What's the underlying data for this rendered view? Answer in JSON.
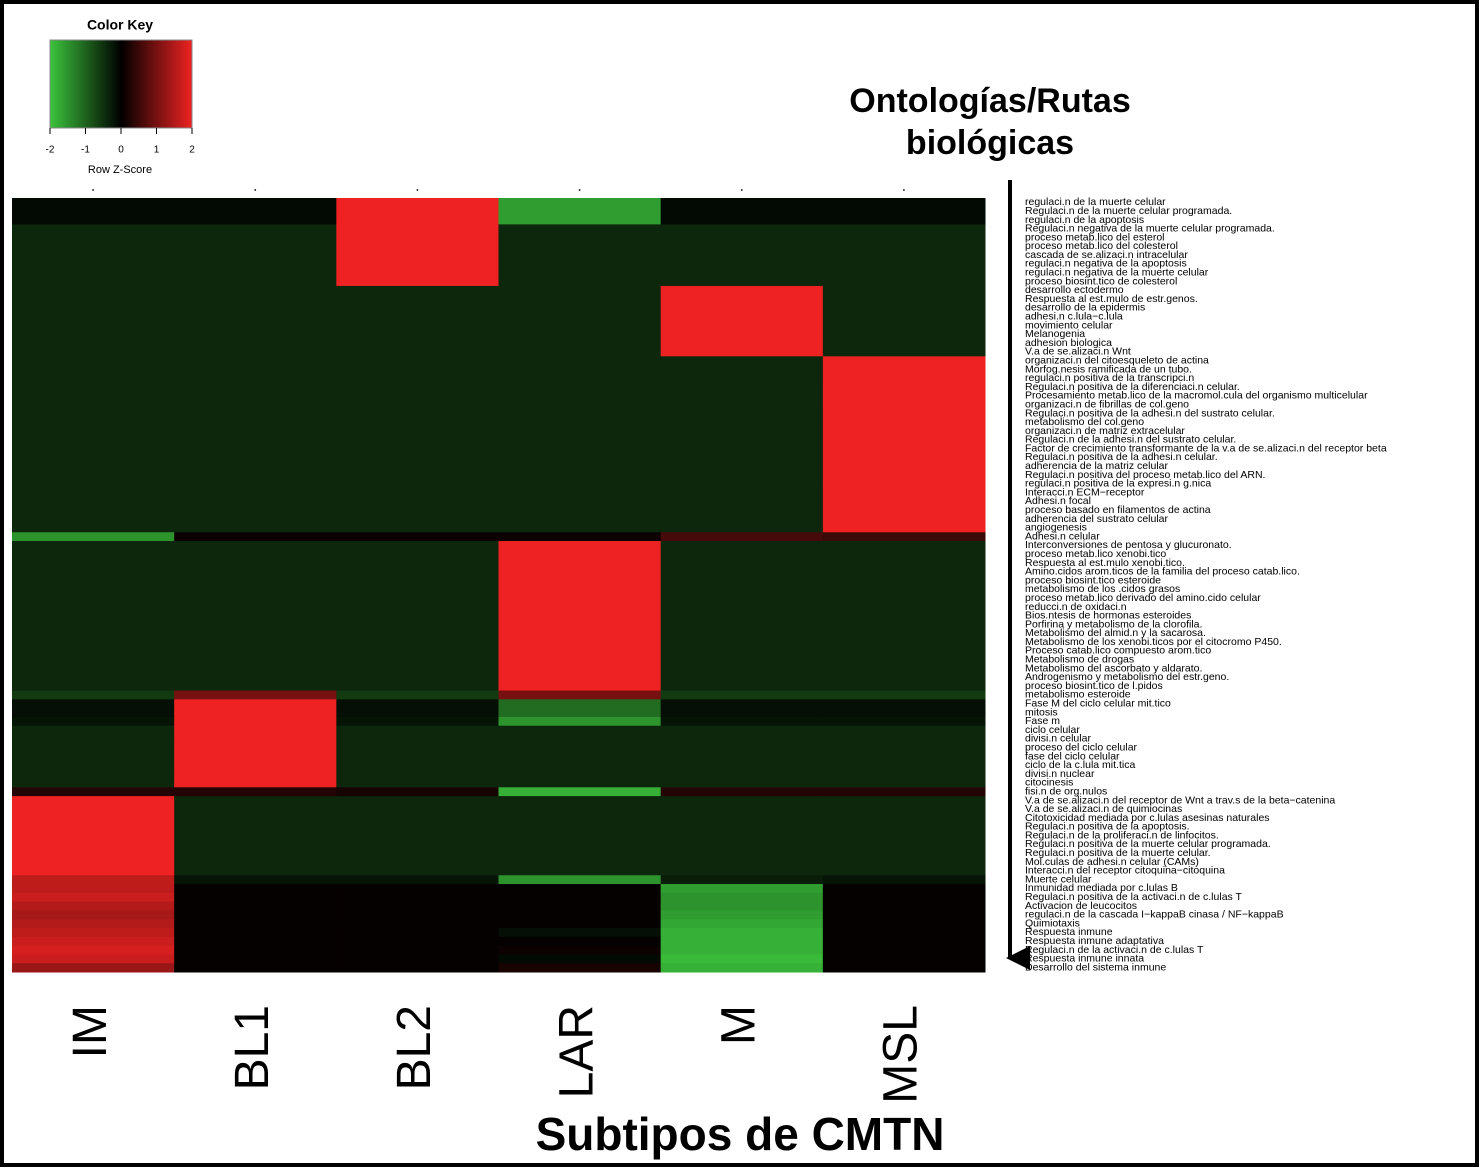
{
  "chart_data": {
    "type": "heatmap",
    "title": "Subtipos de CMTN",
    "row_title": [
      "Ontologías/Rutas",
      "biológicas"
    ],
    "legend": {
      "title": "Color Key",
      "label": "Row Z-Score",
      "zlim": [
        -2,
        2
      ],
      "zticks": [
        -2,
        -1,
        0,
        1,
        2
      ]
    },
    "colors": {
      "low": "#3cc43c",
      "mid": "#000000",
      "high": "#ee2222"
    },
    "columns": [
      "IM",
      "BL1",
      "BL2",
      "LAR",
      "M",
      "MSL"
    ],
    "rows": [
      "regulaci.n de la muerte celular",
      "Regulaci.n de la muerte celular programada.",
      "regulaci.n de la apoptosis",
      "Regulaci.n negativa de la muerte celular programada.",
      "proceso metab.lico del esterol",
      "proceso metab.lico del colesterol",
      "cascada de se.alizaci.n intracelular",
      "regulaci.n negativa de la apoptosis",
      "regulaci.n negativa de la muerte celular",
      "proceso biosint.tico de colesterol",
      "desarrollo ectodermo",
      "Respuesta al est.mulo de estr.genos.",
      "desarrollo de la epidermis",
      "adhesi.n c.lula−c.lula",
      "movimiento celular",
      "Melanogenia",
      "adhesion biologica",
      "V.a de se.alizaci.n Wnt",
      "organizaci.n del citoesqueleto de actina",
      "Morfog.nesis ramificada de un tubo.",
      "regulaci.n positiva de la transcripci.n",
      "Regulaci.n positiva de la diferenciaci.n celular.",
      "Procesamiento metab.lico de la macromol.cula del organismo multicelular",
      "organizaci.n de fibrillas de col.geno",
      "Regulaci.n positiva de la adhesi.n del sustrato celular.",
      "metabolismo del col.geno",
      "organizaci.n de matriz extracelular",
      "Regulaci.n de la adhesi.n del sustrato celular.",
      "Factor de crecimiento transformante de la v.a de se.alizaci.n del receptor beta",
      "Regulaci.n positiva de la adhesi.n celular.",
      "adherencia de la matriz celular",
      "Regulaci.n positiva del proceso metab.lico del ARN.",
      "regulaci.n positiva de la expresi.n g.nica",
      "Interacci.n ECM−receptor",
      "Adhesi.n focal",
      "proceso basado en filamentos de actina",
      "adherencia del sustrato celular",
      "angiogenesis",
      "Adhesi.n celular",
      "Interconversiones de pentosa y glucuronato.",
      "proceso metab.lico xenobi.tico",
      "Respuesta al est.mulo xenobi.tico.",
      "Amino.cidos arom.ticos de la familia del proceso catab.lico.",
      "proceso biosint.tico esteroide",
      "metabolismo de los .cidos grasos",
      "proceso metab.lico derivado del amino.cido celular",
      "reducci.n de oxidaci.n",
      "Bios.ntesis de hormonas esteroides",
      "Porfirina y metabolismo de la clorofila.",
      "Metabolismo del almid.n y la sacarosa.",
      "Metabolismo de los xenobi.ticos por el citocromo P450.",
      "Proceso catab.lico compuesto arom.tico",
      "Metabolismo de drogas",
      "Metabolismo del ascorbato y aldarato.",
      "Androgenismo y metabolismo del estr.geno.",
      "proceso biosint.tico de l.pidos",
      "metabolismo esteroide",
      "Fase M del ciclo celular mit.tico",
      "mitosis",
      "Fase m",
      "ciclo celular",
      "divisi.n celular",
      "proceso del ciclo celular",
      "fase del ciclo celular",
      "ciclo de la c.lula mit.tica",
      "divisi.n nuclear",
      "citocinesis",
      "fisi.n de org.nulos",
      "V.a de se.alizaci.n del receptor de Wnt a trav.s de la beta−catenina",
      "V.a de se.alizaci.n de quimiocinas",
      "Citotoxicidad mediada por c.lulas asesinas naturales",
      "Regulaci.n positiva de la apoptosis.",
      "Regulaci.n de la proliferaci.n de linfocitos.",
      "Regulaci.n positiva de la muerte celular programada.",
      "Regulaci.n positiva de la muerte celular.",
      "Mol.culas de adhesi.n celular (CAMs)",
      "Interacci.n del receptor citoquina−citoquina",
      "Muerte celular",
      "Inmunidad mediada por c.lulas B",
      "Regulaci.n positiva de la activaci.n de c.lulas T",
      "Activacion de leucocitos",
      "regulaci.n de la cascada I−kappaB cinasa / NF−kappaB",
      "Quimiotaxis",
      "Respuesta inmune",
      "Respuesta inmune adaptativa",
      "Regulaci.n de la activaci.n de c.lulas T",
      "Respuesta inmune innata",
      "Desarrollo del sistema inmune"
    ],
    "values": [
      [
        -0.1,
        -0.1,
        2,
        -1.6,
        -0.1,
        -0.1
      ],
      [
        -0.1,
        -0.1,
        2,
        -1.6,
        -0.1,
        -0.1
      ],
      [
        -0.1,
        -0.1,
        2,
        -1.6,
        -0.1,
        -0.1
      ],
      [
        -0.4,
        -0.4,
        2,
        -0.4,
        -0.4,
        -0.4
      ],
      [
        -0.4,
        -0.4,
        2,
        -0.4,
        -0.4,
        -0.4
      ],
      [
        -0.4,
        -0.4,
        2,
        -0.4,
        -0.4,
        -0.4
      ],
      [
        -0.4,
        -0.4,
        2,
        -0.4,
        -0.4,
        -0.4
      ],
      [
        -0.4,
        -0.4,
        2,
        -0.4,
        -0.4,
        -0.4
      ],
      [
        -0.4,
        -0.4,
        2,
        -0.4,
        -0.4,
        -0.4
      ],
      [
        -0.4,
        -0.4,
        2,
        -0.4,
        -0.4,
        -0.4
      ],
      [
        -0.4,
        -0.4,
        -0.4,
        -0.4,
        2,
        -0.4
      ],
      [
        -0.4,
        -0.4,
        -0.4,
        -0.4,
        2,
        -0.4
      ],
      [
        -0.4,
        -0.4,
        -0.4,
        -0.4,
        2,
        -0.4
      ],
      [
        -0.4,
        -0.4,
        -0.4,
        -0.4,
        2,
        -0.4
      ],
      [
        -0.4,
        -0.4,
        -0.4,
        -0.4,
        2,
        -0.4
      ],
      [
        -0.4,
        -0.4,
        -0.4,
        -0.4,
        2,
        -0.4
      ],
      [
        -0.4,
        -0.4,
        -0.4,
        -0.4,
        2,
        -0.4
      ],
      [
        -0.4,
        -0.4,
        -0.4,
        -0.4,
        2,
        -0.4
      ],
      [
        -0.4,
        -0.4,
        -0.4,
        -0.4,
        -0.4,
        2
      ],
      [
        -0.4,
        -0.4,
        -0.4,
        -0.4,
        -0.4,
        2
      ],
      [
        -0.4,
        -0.4,
        -0.4,
        -0.4,
        -0.4,
        2
      ],
      [
        -0.4,
        -0.4,
        -0.4,
        -0.4,
        -0.4,
        2
      ],
      [
        -0.4,
        -0.4,
        -0.4,
        -0.4,
        -0.4,
        2
      ],
      [
        -0.4,
        -0.4,
        -0.4,
        -0.4,
        -0.4,
        2
      ],
      [
        -0.4,
        -0.4,
        -0.4,
        -0.4,
        -0.4,
        2
      ],
      [
        -0.4,
        -0.4,
        -0.4,
        -0.4,
        -0.4,
        2
      ],
      [
        -0.4,
        -0.4,
        -0.4,
        -0.4,
        -0.4,
        2
      ],
      [
        -0.4,
        -0.4,
        -0.4,
        -0.4,
        -0.4,
        2
      ],
      [
        -0.4,
        -0.4,
        -0.4,
        -0.4,
        -0.4,
        2
      ],
      [
        -0.4,
        -0.4,
        -0.4,
        -0.4,
        -0.4,
        2
      ],
      [
        -0.4,
        -0.4,
        -0.4,
        -0.4,
        -0.4,
        2
      ],
      [
        -0.4,
        -0.4,
        -0.4,
        -0.4,
        -0.4,
        2
      ],
      [
        -0.4,
        -0.4,
        -0.4,
        -0.4,
        -0.4,
        2
      ],
      [
        -0.4,
        -0.4,
        -0.4,
        -0.4,
        -0.4,
        2
      ],
      [
        -0.4,
        -0.4,
        -0.4,
        -0.4,
        -0.4,
        2
      ],
      [
        -0.4,
        -0.4,
        -0.4,
        -0.4,
        -0.4,
        2
      ],
      [
        -0.4,
        -0.4,
        -0.4,
        -0.4,
        -0.4,
        2
      ],
      [
        -0.4,
        -0.4,
        -0.4,
        -0.4,
        -0.4,
        2
      ],
      [
        -1.5,
        0.1,
        0.1,
        0.1,
        0.6,
        0.5
      ],
      [
        -0.4,
        -0.4,
        -0.4,
        2,
        -0.4,
        -0.4
      ],
      [
        -0.4,
        -0.4,
        -0.4,
        2,
        -0.4,
        -0.4
      ],
      [
        -0.4,
        -0.4,
        -0.4,
        2,
        -0.4,
        -0.4
      ],
      [
        -0.4,
        -0.4,
        -0.4,
        2,
        -0.4,
        -0.4
      ],
      [
        -0.4,
        -0.4,
        -0.4,
        2,
        -0.4,
        -0.4
      ],
      [
        -0.4,
        -0.4,
        -0.4,
        2,
        -0.4,
        -0.4
      ],
      [
        -0.4,
        -0.4,
        -0.4,
        2,
        -0.4,
        -0.4
      ],
      [
        -0.4,
        -0.4,
        -0.4,
        2,
        -0.4,
        -0.4
      ],
      [
        -0.4,
        -0.4,
        -0.4,
        2,
        -0.4,
        -0.4
      ],
      [
        -0.4,
        -0.4,
        -0.4,
        2,
        -0.4,
        -0.4
      ],
      [
        -0.4,
        -0.4,
        -0.4,
        2,
        -0.4,
        -0.4
      ],
      [
        -0.4,
        -0.4,
        -0.4,
        2,
        -0.4,
        -0.4
      ],
      [
        -0.4,
        -0.4,
        -0.4,
        2,
        -0.4,
        -0.4
      ],
      [
        -0.4,
        -0.4,
        -0.4,
        2,
        -0.4,
        -0.4
      ],
      [
        -0.4,
        -0.4,
        -0.4,
        2,
        -0.4,
        -0.4
      ],
      [
        -0.4,
        -0.4,
        -0.4,
        2,
        -0.4,
        -0.4
      ],
      [
        -0.4,
        -0.4,
        -0.4,
        2,
        -0.4,
        -0.4
      ],
      [
        -0.6,
        1.0,
        -0.6,
        1.0,
        -0.6,
        -0.6
      ],
      [
        -0.15,
        2,
        -0.15,
        -1.1,
        -0.15,
        -0.15
      ],
      [
        -0.15,
        2,
        -0.15,
        -1.1,
        -0.15,
        -0.15
      ],
      [
        -0.2,
        2,
        -0.2,
        -1.5,
        -0.2,
        -0.2
      ],
      [
        -0.4,
        2,
        -0.4,
        -0.4,
        -0.4,
        -0.4
      ],
      [
        -0.4,
        2,
        -0.4,
        -0.4,
        -0.4,
        -0.4
      ],
      [
        -0.4,
        2,
        -0.4,
        -0.4,
        -0.4,
        -0.4
      ],
      [
        -0.4,
        2,
        -0.4,
        -0.4,
        -0.4,
        -0.4
      ],
      [
        -0.4,
        2,
        -0.4,
        -0.4,
        -0.4,
        -0.4
      ],
      [
        -0.4,
        2,
        -0.4,
        -0.4,
        -0.4,
        -0.4
      ],
      [
        -0.4,
        2,
        -0.4,
        -0.4,
        -0.4,
        -0.4
      ],
      [
        0.3,
        0.3,
        0.2,
        -1.8,
        0.3,
        0.3
      ],
      [
        2,
        -0.4,
        -0.4,
        -0.4,
        -0.4,
        -0.4
      ],
      [
        2,
        -0.4,
        -0.4,
        -0.4,
        -0.4,
        -0.4
      ],
      [
        2,
        -0.4,
        -0.4,
        -0.4,
        -0.4,
        -0.4
      ],
      [
        2,
        -0.4,
        -0.4,
        -0.4,
        -0.4,
        -0.4
      ],
      [
        2,
        -0.4,
        -0.4,
        -0.4,
        -0.4,
        -0.4
      ],
      [
        2,
        -0.4,
        -0.4,
        -0.4,
        -0.4,
        -0.4
      ],
      [
        2,
        -0.4,
        -0.4,
        -0.4,
        -0.4,
        -0.4
      ],
      [
        2,
        -0.4,
        -0.4,
        -0.4,
        -0.4,
        -0.4
      ],
      [
        2,
        -0.4,
        -0.4,
        -0.4,
        -0.4,
        -0.4
      ],
      [
        1.6,
        -0.2,
        -0.2,
        -1.5,
        -0.3,
        -0.2
      ],
      [
        1.6,
        0.05,
        0.05,
        0.05,
        -1.6,
        0.05
      ],
      [
        1.7,
        0.05,
        0.05,
        0.05,
        -1.5,
        0.05
      ],
      [
        1.5,
        0.05,
        0.05,
        0.05,
        -1.5,
        0.05
      ],
      [
        1.4,
        0.05,
        0.05,
        0.05,
        -1.6,
        0.05
      ],
      [
        1.5,
        0.05,
        0.05,
        0.05,
        -1.7,
        0.05
      ],
      [
        1.6,
        0.05,
        0.05,
        -0.15,
        -1.8,
        0.05
      ],
      [
        1.7,
        0.05,
        0.05,
        0.05,
        -1.8,
        0.05
      ],
      [
        1.8,
        0.05,
        0.05,
        0.1,
        -1.8,
        0.05
      ],
      [
        1.7,
        0.05,
        0.05,
        -0.1,
        -1.9,
        0.05
      ],
      [
        1.3,
        0.05,
        0.05,
        0.2,
        -1.8,
        0.05
      ]
    ]
  }
}
